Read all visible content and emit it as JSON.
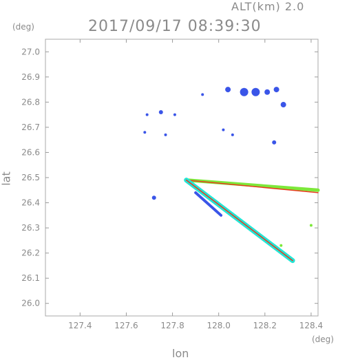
{
  "header": {
    "alt_label": "ALT(km) 2.0",
    "timestamp": "2017/09/17 08:39:30"
  },
  "chart_data": {
    "type": "scatter",
    "title": "2017/09/17 08:39:30",
    "xlabel": "lon",
    "ylabel": "lat",
    "xunit": "(deg)",
    "yunit": "(deg)",
    "xlim": [
      127.25,
      128.43
    ],
    "ylim": [
      25.95,
      27.05
    ],
    "xticks": [
      127.4,
      127.6,
      127.8,
      128.0,
      128.2,
      128.4
    ],
    "yticks": [
      26.0,
      26.1,
      26.2,
      26.3,
      26.4,
      26.5,
      26.6,
      26.7,
      26.8,
      26.9,
      27.0
    ],
    "xtick_labels": [
      "127.4",
      "127.6",
      "127.8",
      "128.0",
      "128.2",
      "128.4"
    ],
    "ytick_labels": [
      "26.0",
      "26.1",
      "26.2",
      "26.3",
      "26.4",
      "26.5",
      "26.6",
      "26.7",
      "26.8",
      "26.9",
      "27.0"
    ],
    "grid": false,
    "colors": {
      "echo_blue": "#3a55e8",
      "echo_cyan": "#22e6d6",
      "echo_green": "#7de83a",
      "echo_yellow": "#e8e43a",
      "echo_red": "#e83a1e",
      "axis": "#9a9a9a"
    },
    "echoes": [
      {
        "lon": 128.11,
        "lat": 26.84,
        "color": "blue",
        "size": 3
      },
      {
        "lon": 128.16,
        "lat": 26.84,
        "color": "blue",
        "size": 3
      },
      {
        "lon": 128.21,
        "lat": 26.84,
        "color": "blue",
        "size": 2
      },
      {
        "lon": 128.25,
        "lat": 26.85,
        "color": "blue",
        "size": 2
      },
      {
        "lon": 128.04,
        "lat": 26.85,
        "color": "blue",
        "size": 2
      },
      {
        "lon": 128.28,
        "lat": 26.79,
        "color": "blue",
        "size": 2
      },
      {
        "lon": 128.24,
        "lat": 26.64,
        "color": "blue",
        "size": 1.5
      },
      {
        "lon": 127.93,
        "lat": 26.83,
        "color": "blue",
        "size": 1
      },
      {
        "lon": 127.75,
        "lat": 26.76,
        "color": "blue",
        "size": 1.5
      },
      {
        "lon": 127.69,
        "lat": 26.75,
        "color": "blue",
        "size": 1
      },
      {
        "lon": 127.81,
        "lat": 26.75,
        "color": "blue",
        "size": 1
      },
      {
        "lon": 128.06,
        "lat": 26.67,
        "color": "blue",
        "size": 1
      },
      {
        "lon": 128.02,
        "lat": 26.69,
        "color": "blue",
        "size": 1
      },
      {
        "lon": 127.68,
        "lat": 26.68,
        "color": "blue",
        "size": 1
      },
      {
        "lon": 127.77,
        "lat": 26.67,
        "color": "blue",
        "size": 1
      },
      {
        "lon": 127.72,
        "lat": 26.42,
        "color": "blue",
        "size": 1.5
      },
      {
        "lon": 128.27,
        "lat": 26.23,
        "color": "green",
        "size": 1
      },
      {
        "lon": 128.4,
        "lat": 26.31,
        "color": "green",
        "size": 1
      }
    ],
    "bands": [
      {
        "from": [
          127.86,
          26.49
        ],
        "to": [
          128.43,
          26.45
        ],
        "color": "green",
        "width": 5
      },
      {
        "from": [
          127.86,
          26.49
        ],
        "to": [
          128.43,
          26.44
        ],
        "color": "red",
        "width": 1.5
      },
      {
        "from": [
          127.86,
          26.49
        ],
        "to": [
          128.32,
          26.17
        ],
        "color": "cyan",
        "width": 7
      },
      {
        "from": [
          127.86,
          26.49
        ],
        "to": [
          128.32,
          26.17
        ],
        "color": "red",
        "width": 1.5
      },
      {
        "from": [
          127.9,
          26.44
        ],
        "to": [
          128.01,
          26.35
        ],
        "color": "blue",
        "width": 4
      }
    ]
  }
}
